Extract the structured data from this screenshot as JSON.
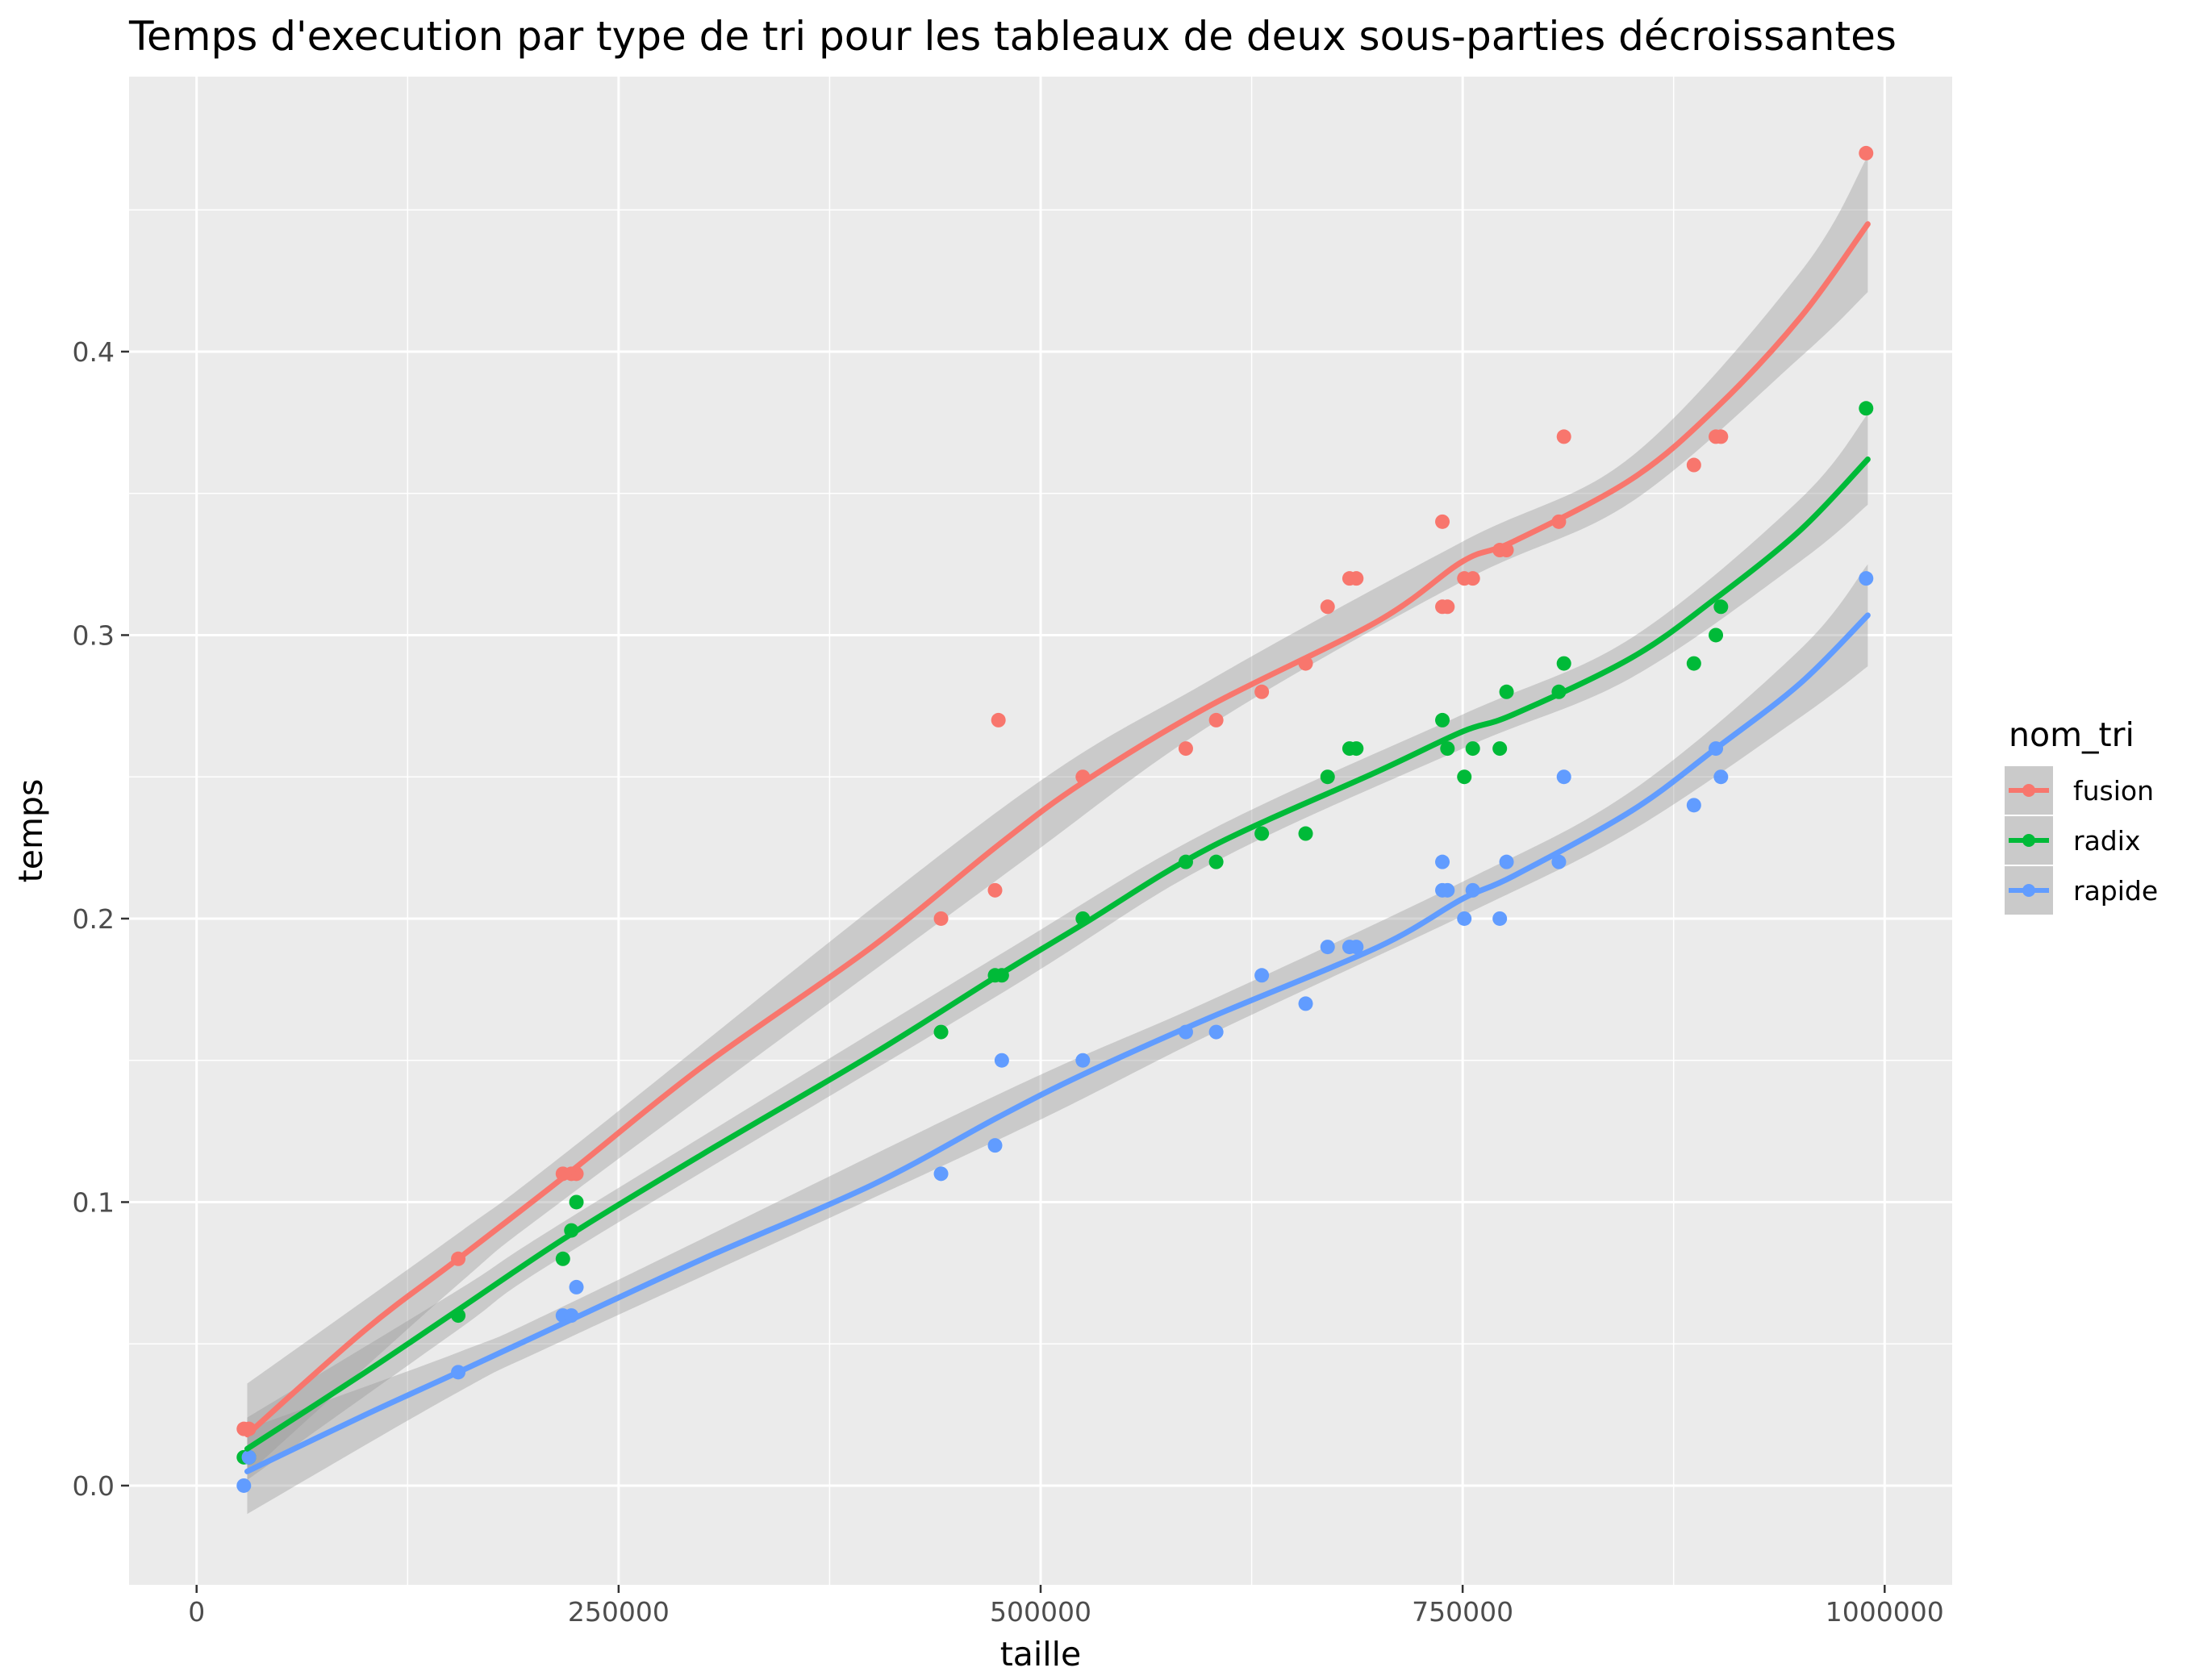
{
  "chart_data": {
    "type": "scatter",
    "title": "Temps d'execution par type de tri pour les tableaux de deux sous-parties décroissantes",
    "xlabel": "taille",
    "ylabel": "temps",
    "xlim": [
      -40000,
      1040000
    ],
    "ylim": [
      -0.035,
      0.497
    ],
    "x_ticks": [
      0,
      250000,
      500000,
      750000,
      1000000
    ],
    "x_tick_labels": [
      "0",
      "250000",
      "500000",
      "750000",
      "1000000"
    ],
    "y_ticks": [
      0.0,
      0.1,
      0.2,
      0.3,
      0.4
    ],
    "y_tick_labels": [
      "0.0",
      "0.1",
      "0.2",
      "0.3",
      "0.4"
    ],
    "grid": true,
    "legend": {
      "title": "nom_tri",
      "position": "right"
    },
    "series": [
      {
        "name": "fusion",
        "color": "#F8766D",
        "points": [
          [
            28000,
            0.02
          ],
          [
            31000,
            0.02
          ],
          [
            155000,
            0.08
          ],
          [
            217000,
            0.11
          ],
          [
            222000,
            0.11
          ],
          [
            225000,
            0.11
          ],
          [
            441000,
            0.2
          ],
          [
            473000,
            0.21
          ],
          [
            475000,
            0.27
          ],
          [
            525000,
            0.25
          ],
          [
            586000,
            0.26
          ],
          [
            604000,
            0.27
          ],
          [
            631000,
            0.28
          ],
          [
            657000,
            0.29
          ],
          [
            670000,
            0.31
          ],
          [
            683000,
            0.32
          ],
          [
            687000,
            0.32
          ],
          [
            738000,
            0.34
          ],
          [
            738000,
            0.31
          ],
          [
            741000,
            0.31
          ],
          [
            751000,
            0.32
          ],
          [
            756000,
            0.32
          ],
          [
            772000,
            0.33
          ],
          [
            776000,
            0.33
          ],
          [
            807000,
            0.34
          ],
          [
            810000,
            0.37
          ],
          [
            887000,
            0.36
          ],
          [
            900000,
            0.37
          ],
          [
            903000,
            0.37
          ],
          [
            989000,
            0.47
          ]
        ],
        "smooth": [
          [
            30000,
            0.018
          ],
          [
            100000,
            0.055
          ],
          [
            155000,
            0.08
          ],
          [
            220000,
            0.11
          ],
          [
            300000,
            0.148
          ],
          [
            400000,
            0.19
          ],
          [
            475000,
            0.226
          ],
          [
            525000,
            0.248
          ],
          [
            600000,
            0.275
          ],
          [
            700000,
            0.305
          ],
          [
            750000,
            0.326
          ],
          [
            780000,
            0.333
          ],
          [
            850000,
            0.355
          ],
          [
            900000,
            0.38
          ],
          [
            950000,
            0.412
          ],
          [
            990000,
            0.445
          ]
        ],
        "band": [
          [
            30000,
            0.004,
            0.036
          ],
          [
            155000,
            0.071,
            0.089
          ],
          [
            220000,
            0.102,
            0.118
          ],
          [
            475000,
            0.214,
            0.238
          ],
          [
            600000,
            0.268,
            0.284
          ],
          [
            750000,
            0.319,
            0.333
          ],
          [
            850000,
            0.347,
            0.363
          ],
          [
            950000,
            0.398,
            0.428
          ],
          [
            990000,
            0.421,
            0.469
          ]
        ]
      },
      {
        "name": "radix",
        "color": "#00BA38",
        "points": [
          [
            28000,
            0.01
          ],
          [
            31000,
            0.01
          ],
          [
            155000,
            0.06
          ],
          [
            217000,
            0.08
          ],
          [
            222000,
            0.09
          ],
          [
            225000,
            0.1
          ],
          [
            441000,
            0.16
          ],
          [
            473000,
            0.18
          ],
          [
            477000,
            0.18
          ],
          [
            525000,
            0.2
          ],
          [
            586000,
            0.22
          ],
          [
            604000,
            0.22
          ],
          [
            631000,
            0.23
          ],
          [
            657000,
            0.23
          ],
          [
            670000,
            0.25
          ],
          [
            683000,
            0.26
          ],
          [
            687000,
            0.26
          ],
          [
            738000,
            0.27
          ],
          [
            741000,
            0.26
          ],
          [
            751000,
            0.25
          ],
          [
            756000,
            0.26
          ],
          [
            772000,
            0.26
          ],
          [
            776000,
            0.28
          ],
          [
            807000,
            0.28
          ],
          [
            810000,
            0.29
          ],
          [
            887000,
            0.29
          ],
          [
            900000,
            0.3
          ],
          [
            903000,
            0.31
          ],
          [
            989000,
            0.38
          ]
        ],
        "smooth": [
          [
            30000,
            0.013
          ],
          [
            100000,
            0.04
          ],
          [
            155000,
            0.062
          ],
          [
            220000,
            0.088
          ],
          [
            300000,
            0.117
          ],
          [
            400000,
            0.152
          ],
          [
            475000,
            0.18
          ],
          [
            525000,
            0.198
          ],
          [
            600000,
            0.225
          ],
          [
            700000,
            0.252
          ],
          [
            750000,
            0.266
          ],
          [
            780000,
            0.272
          ],
          [
            850000,
            0.292
          ],
          [
            900000,
            0.313
          ],
          [
            950000,
            0.337
          ],
          [
            990000,
            0.362
          ]
        ],
        "band": [
          [
            30000,
            0.002,
            0.024
          ],
          [
            155000,
            0.055,
            0.069
          ],
          [
            220000,
            0.082,
            0.094
          ],
          [
            475000,
            0.173,
            0.187
          ],
          [
            600000,
            0.219,
            0.231
          ],
          [
            750000,
            0.26,
            0.272
          ],
          [
            850000,
            0.285,
            0.299
          ],
          [
            950000,
            0.326,
            0.348
          ],
          [
            990000,
            0.346,
            0.378
          ]
        ]
      },
      {
        "name": "rapide",
        "color": "#619CFF",
        "points": [
          [
            28000,
            0.0
          ],
          [
            31000,
            0.01
          ],
          [
            155000,
            0.04
          ],
          [
            217000,
            0.06
          ],
          [
            222000,
            0.06
          ],
          [
            225000,
            0.07
          ],
          [
            441000,
            0.11
          ],
          [
            473000,
            0.12
          ],
          [
            477000,
            0.15
          ],
          [
            525000,
            0.15
          ],
          [
            586000,
            0.16
          ],
          [
            604000,
            0.16
          ],
          [
            631000,
            0.18
          ],
          [
            657000,
            0.17
          ],
          [
            670000,
            0.19
          ],
          [
            683000,
            0.19
          ],
          [
            687000,
            0.19
          ],
          [
            738000,
            0.22
          ],
          [
            738000,
            0.21
          ],
          [
            741000,
            0.21
          ],
          [
            751000,
            0.2
          ],
          [
            756000,
            0.21
          ],
          [
            772000,
            0.2
          ],
          [
            776000,
            0.22
          ],
          [
            807000,
            0.22
          ],
          [
            810000,
            0.25
          ],
          [
            887000,
            0.24
          ],
          [
            900000,
            0.26
          ],
          [
            903000,
            0.25
          ],
          [
            989000,
            0.32
          ]
        ],
        "smooth": [
          [
            30000,
            0.005
          ],
          [
            100000,
            0.025
          ],
          [
            155000,
            0.04
          ],
          [
            220000,
            0.058
          ],
          [
            300000,
            0.08
          ],
          [
            400000,
            0.106
          ],
          [
            475000,
            0.13
          ],
          [
            525000,
            0.145
          ],
          [
            600000,
            0.165
          ],
          [
            700000,
            0.19
          ],
          [
            750000,
            0.207
          ],
          [
            780000,
            0.215
          ],
          [
            850000,
            0.238
          ],
          [
            900000,
            0.26
          ],
          [
            950000,
            0.283
          ],
          [
            990000,
            0.307
          ]
        ],
        "band": [
          [
            30000,
            -0.01,
            0.02
          ],
          [
            155000,
            0.033,
            0.047
          ],
          [
            220000,
            0.052,
            0.064
          ],
          [
            475000,
            0.122,
            0.138
          ],
          [
            600000,
            0.159,
            0.171
          ],
          [
            750000,
            0.201,
            0.213
          ],
          [
            850000,
            0.231,
            0.245
          ],
          [
            950000,
            0.271,
            0.295
          ],
          [
            990000,
            0.289,
            0.325
          ]
        ]
      }
    ]
  }
}
